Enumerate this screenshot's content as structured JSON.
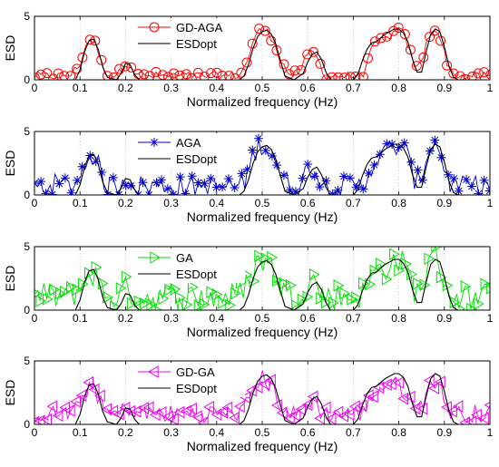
{
  "chart_data": [
    {
      "type": "line",
      "xlabel": "Normalized frequency (Hz)",
      "ylabel": "ESD",
      "xlim": [
        0,
        1
      ],
      "ylim": [
        0,
        5
      ],
      "xticks": [
        "0",
        "0.1",
        "0.2",
        "0.3",
        "0.4",
        "0.5",
        "0.6",
        "0.7",
        "0.8",
        "0.9",
        "1"
      ],
      "yticks": [
        "0",
        "5"
      ],
      "grid": true,
      "legend_position": "top-center",
      "series": [
        {
          "name": "GD-AGA",
          "color": "#ff0000",
          "marker": "circle",
          "noise": 0.35,
          "x": [
            0,
            0.02,
            0.04,
            0.06,
            0.08,
            0.1,
            0.11,
            0.12,
            0.13,
            0.14,
            0.15,
            0.17,
            0.19,
            0.2,
            0.21,
            0.22,
            0.24,
            0.27,
            0.3,
            0.33,
            0.36,
            0.39,
            0.42,
            0.45,
            0.46,
            0.47,
            0.48,
            0.49,
            0.5,
            0.51,
            0.52,
            0.53,
            0.54,
            0.56,
            0.58,
            0.59,
            0.6,
            0.61,
            0.62,
            0.63,
            0.64,
            0.66,
            0.68,
            0.7,
            0.72,
            0.73,
            0.74,
            0.75,
            0.76,
            0.77,
            0.78,
            0.79,
            0.8,
            0.81,
            0.82,
            0.83,
            0.84,
            0.85,
            0.86,
            0.87,
            0.88,
            0.89,
            0.9,
            0.91,
            0.92,
            0.94,
            0.96,
            0.98,
            1
          ],
          "y": [
            0.3,
            0.3,
            0.3,
            0.3,
            0.4,
            1.2,
            2.5,
            3.2,
            3.1,
            2.2,
            0.9,
            0.3,
            0.6,
            1.4,
            1.3,
            0.6,
            0.3,
            0.3,
            0.3,
            0.3,
            0.3,
            0.3,
            0.3,
            0.4,
            0.9,
            1.8,
            3,
            3.7,
            4,
            3.8,
            3.4,
            2.8,
            1.5,
            0.4,
            0.5,
            1.3,
            1.9,
            2.3,
            1.8,
            0.9,
            0.3,
            0.3,
            0.3,
            0.3,
            0.4,
            1.2,
            2.3,
            2.8,
            3,
            3.2,
            3.5,
            3.7,
            3.9,
            3.6,
            2.8,
            1.5,
            0.8,
            1.4,
            2.8,
            3.8,
            4,
            3.4,
            2.1,
            0.9,
            0.4,
            0.3,
            0.3,
            0.3,
            0.3
          ]
        },
        {
          "name": "ESDopt",
          "color": "#000000",
          "marker": "none"
        }
      ]
    },
    {
      "type": "line",
      "xlabel": "Normalized frequency (Hz)",
      "ylabel": "ESD",
      "xlim": [
        0,
        1
      ],
      "ylim": [
        0,
        5
      ],
      "xticks": [
        "0",
        "0.1",
        "0.2",
        "0.3",
        "0.4",
        "0.5",
        "0.6",
        "0.7",
        "0.8",
        "0.9",
        "1"
      ],
      "yticks": [
        "0",
        "5"
      ],
      "grid": true,
      "legend_position": "top-center",
      "series": [
        {
          "name": "AGA",
          "color": "#0000cc",
          "marker": "asterisk",
          "noise": 0.9,
          "x": [
            0,
            0.02,
            0.04,
            0.06,
            0.08,
            0.1,
            0.11,
            0.12,
            0.13,
            0.14,
            0.15,
            0.17,
            0.19,
            0.2,
            0.21,
            0.22,
            0.24,
            0.27,
            0.3,
            0.33,
            0.36,
            0.39,
            0.42,
            0.45,
            0.46,
            0.47,
            0.48,
            0.49,
            0.5,
            0.51,
            0.52,
            0.53,
            0.54,
            0.56,
            0.58,
            0.59,
            0.6,
            0.61,
            0.62,
            0.63,
            0.64,
            0.66,
            0.68,
            0.7,
            0.72,
            0.73,
            0.74,
            0.75,
            0.76,
            0.77,
            0.78,
            0.79,
            0.8,
            0.81,
            0.82,
            0.83,
            0.84,
            0.85,
            0.86,
            0.87,
            0.88,
            0.89,
            0.9,
            0.91,
            0.92,
            0.94,
            0.96,
            0.98,
            1
          ],
          "y": [
            0.6,
            0.7,
            0.8,
            0.7,
            0.8,
            1.3,
            2.6,
            3.3,
            3.2,
            2.3,
            1,
            0.7,
            0.8,
            1.5,
            1.4,
            0.8,
            0.6,
            0.7,
            0.7,
            0.6,
            0.7,
            0.6,
            0.7,
            0.7,
            1,
            1.9,
            3.1,
            3.8,
            4.1,
            3.8,
            3.4,
            2.8,
            1.6,
            0.7,
            0.7,
            1.4,
            2,
            2.3,
            1.9,
            1,
            0.6,
            0.7,
            0.6,
            0.7,
            0.7,
            1.3,
            2.4,
            2.9,
            3.1,
            3.3,
            3.6,
            3.8,
            3.9,
            3.6,
            2.9,
            1.6,
            1,
            1.5,
            2.9,
            3.9,
            4.1,
            3.5,
            2.2,
            1,
            0.7,
            0.6,
            0.7,
            0.6,
            0.7
          ]
        },
        {
          "name": "ESDopt",
          "color": "#000000",
          "marker": "none"
        }
      ]
    },
    {
      "type": "line",
      "xlabel": "Normalized frequency (Hz)",
      "ylabel": "ESD",
      "xlim": [
        0,
        1
      ],
      "ylim": [
        0,
        5
      ],
      "xticks": [
        "0",
        "0.1",
        "0.2",
        "0.3",
        "0.4",
        "0.5",
        "0.6",
        "0.7",
        "0.8",
        "0.9",
        "1"
      ],
      "yticks": [
        "0",
        "5"
      ],
      "grid": true,
      "legend_position": "top-center",
      "series": [
        {
          "name": "GA",
          "color": "#00dd00",
          "marker": "triangle-right",
          "noise": 1.1,
          "x": [
            0,
            0.02,
            0.04,
            0.06,
            0.08,
            0.1,
            0.11,
            0.12,
            0.13,
            0.14,
            0.15,
            0.17,
            0.19,
            0.2,
            0.21,
            0.22,
            0.24,
            0.27,
            0.3,
            0.33,
            0.36,
            0.39,
            0.42,
            0.45,
            0.46,
            0.47,
            0.48,
            0.49,
            0.5,
            0.51,
            0.52,
            0.53,
            0.54,
            0.56,
            0.58,
            0.59,
            0.6,
            0.61,
            0.62,
            0.63,
            0.64,
            0.66,
            0.68,
            0.7,
            0.72,
            0.73,
            0.74,
            0.75,
            0.76,
            0.77,
            0.78,
            0.79,
            0.8,
            0.81,
            0.82,
            0.83,
            0.84,
            0.85,
            0.86,
            0.87,
            0.88,
            0.89,
            0.9,
            0.91,
            0.92,
            0.94,
            0.96,
            0.98,
            1
          ],
          "y": [
            1,
            1.1,
            1.1,
            1,
            1.2,
            1.6,
            2.4,
            2.9,
            2.9,
            2.2,
            1.4,
            1.1,
            1.2,
            1.6,
            1.5,
            1.2,
            1,
            1.1,
            1.1,
            1,
            1.1,
            1,
            1.1,
            1.2,
            1.5,
            2.4,
            3.2,
            3.8,
            4,
            3.8,
            3.4,
            2.8,
            1.9,
            1.1,
            1.2,
            1.6,
            2.1,
            2.4,
            2,
            1.3,
            1,
            1.1,
            1,
            1.1,
            1.2,
            1.8,
            2.7,
            3.1,
            3.3,
            3.4,
            3.6,
            3.8,
            3.9,
            3.6,
            3,
            1.9,
            1.4,
            1.9,
            3,
            3.9,
            4.1,
            3.6,
            2.4,
            1.4,
            1.1,
            1,
            1.1,
            1,
            1.1
          ]
        },
        {
          "name": "ESDopt",
          "color": "#000000",
          "marker": "none"
        }
      ]
    },
    {
      "type": "line",
      "xlabel": "Normalized frequency (Hz)",
      "ylabel": "ESD",
      "xlim": [
        0,
        1
      ],
      "ylim": [
        0,
        5
      ],
      "xticks": [
        "0",
        "0.1",
        "0.2",
        "0.3",
        "0.4",
        "0.5",
        "0.6",
        "0.7",
        "0.8",
        "0.9",
        "1"
      ],
      "yticks": [
        "0",
        "5"
      ],
      "grid": true,
      "legend_position": "top-center",
      "series": [
        {
          "name": "GD-GA",
          "color": "#ee00ee",
          "marker": "triangle-left",
          "noise": 0.7,
          "x": [
            0,
            0.02,
            0.04,
            0.06,
            0.08,
            0.1,
            0.11,
            0.12,
            0.13,
            0.14,
            0.15,
            0.17,
            0.19,
            0.2,
            0.21,
            0.22,
            0.24,
            0.27,
            0.3,
            0.33,
            0.36,
            0.39,
            0.42,
            0.45,
            0.46,
            0.47,
            0.48,
            0.49,
            0.5,
            0.51,
            0.52,
            0.53,
            0.54,
            0.56,
            0.58,
            0.59,
            0.6,
            0.61,
            0.62,
            0.63,
            0.64,
            0.66,
            0.68,
            0.7,
            0.72,
            0.73,
            0.74,
            0.75,
            0.76,
            0.77,
            0.78,
            0.79,
            0.8,
            0.81,
            0.82,
            0.83,
            0.84,
            0.85,
            0.86,
            0.87,
            0.88,
            0.89,
            0.9,
            0.91,
            0.92,
            0.94,
            0.96,
            0.98,
            1
          ],
          "y": [
            0.8,
            0.9,
            0.8,
            0.9,
            0.9,
            1.3,
            2.4,
            3.1,
            3,
            2.2,
            1.1,
            0.8,
            0.9,
            1.4,
            1.3,
            0.9,
            0.8,
            0.9,
            0.8,
            0.9,
            0.8,
            0.9,
            0.8,
            0.9,
            1.1,
            2,
            2.8,
            3.4,
            3.6,
            3.4,
            3,
            2.5,
            1.5,
            0.8,
            0.8,
            1.3,
            1.7,
            2,
            1.6,
            1,
            0.8,
            0.9,
            0.8,
            0.9,
            0.9,
            1.4,
            2.3,
            2.7,
            2.9,
            3,
            3.2,
            3.1,
            3,
            2.7,
            2.3,
            1.5,
            1,
            1.5,
            2.6,
            3.3,
            3.5,
            3,
            2,
            1.1,
            0.9,
            0.8,
            0.9,
            0.8,
            0.9
          ]
        },
        {
          "name": "ESDopt",
          "color": "#000000",
          "marker": "none"
        }
      ]
    }
  ],
  "esdopt_reference": {
    "x": [
      0,
      0.05,
      0.09,
      0.1,
      0.11,
      0.12,
      0.13,
      0.14,
      0.15,
      0.16,
      0.18,
      0.19,
      0.2,
      0.21,
      0.22,
      0.23,
      0.25,
      0.3,
      0.35,
      0.4,
      0.45,
      0.46,
      0.47,
      0.48,
      0.49,
      0.5,
      0.51,
      0.52,
      0.53,
      0.54,
      0.55,
      0.57,
      0.59,
      0.6,
      0.61,
      0.62,
      0.63,
      0.64,
      0.65,
      0.68,
      0.7,
      0.71,
      0.72,
      0.73,
      0.74,
      0.75,
      0.76,
      0.77,
      0.78,
      0.79,
      0.8,
      0.81,
      0.82,
      0.83,
      0.84,
      0.85,
      0.86,
      0.87,
      0.88,
      0.89,
      0.9,
      0.91,
      0.92,
      0.93,
      0.95,
      1
    ],
    "y": [
      0,
      0,
      0,
      0.8,
      2.2,
      3.1,
      3.2,
      2.4,
      1,
      0.2,
      0,
      0.5,
      1.3,
      1.2,
      0.4,
      0,
      0,
      0,
      0,
      0,
      0,
      0.3,
      1.2,
      2.5,
      3.4,
      3.8,
      3.9,
      3.6,
      2.8,
      1.5,
      0.3,
      0,
      0.5,
      1.4,
      2,
      2.2,
      1.6,
      0.6,
      0,
      0,
      0,
      0.4,
      1.5,
      2.4,
      2.9,
      3,
      3.3,
      3.6,
      3.8,
      4,
      4,
      3.7,
      3,
      1.6,
      0.6,
      0.6,
      2.2,
      3.6,
      4,
      3.8,
      2.6,
      1.1,
      0.2,
      0,
      0,
      0
    ]
  }
}
